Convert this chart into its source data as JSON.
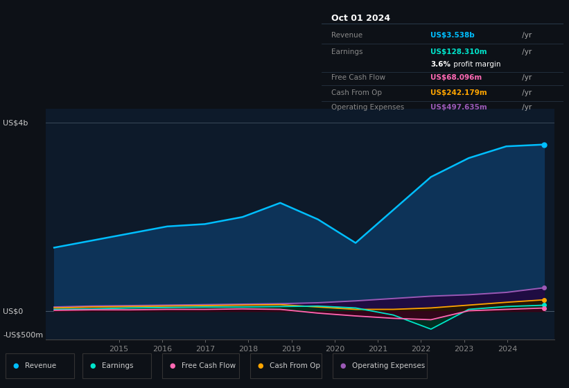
{
  "bg_color": "#0d1117",
  "plot_bg_color": "#0d1a2a",
  "title_box_bg": "#080c10",
  "title_box_text": "Oct 01 2024",
  "info_rows": [
    {
      "label": "Revenue",
      "value": "US$3.538b",
      "suffix": " /yr",
      "value_color": "#00bfff",
      "label_color": "#888888",
      "extra": null
    },
    {
      "label": "Earnings",
      "value": "US$128.310m",
      "suffix": " /yr",
      "value_color": "#00e5cc",
      "label_color": "#888888",
      "extra": "3.6% profit margin"
    },
    {
      "label": "Free Cash Flow",
      "value": "US$68.096m",
      "suffix": " /yr",
      "value_color": "#ff69b4",
      "label_color": "#888888",
      "extra": null
    },
    {
      "label": "Cash From Op",
      "value": "US$242.179m",
      "suffix": " /yr",
      "value_color": "#ffa500",
      "label_color": "#888888",
      "extra": null
    },
    {
      "label": "Operating Expenses",
      "value": "US$497.635m",
      "suffix": " /yr",
      "value_color": "#9b59b6",
      "label_color": "#888888",
      "extra": null
    }
  ],
  "ylabel_top": "US$4b",
  "ylabel_zero": "US$0",
  "ylabel_bottom": "-US$500m",
  "xtick_years": [
    2015,
    2016,
    2017,
    2018,
    2019,
    2020,
    2021,
    2022,
    2023,
    2024
  ],
  "revenue_color": "#00bfff",
  "revenue_fill": "#0d3a5c",
  "earnings_color": "#00e5cc",
  "fcf_color": "#ff69b4",
  "cashfromop_color": "#ffa500",
  "opex_color": "#9b59b6",
  "legend_items": [
    {
      "label": "Revenue",
      "color": "#00bfff"
    },
    {
      "label": "Earnings",
      "color": "#00e5cc"
    },
    {
      "label": "Free Cash Flow",
      "color": "#ff69b4"
    },
    {
      "label": "Cash From Op",
      "color": "#ffa500"
    },
    {
      "label": "Operating Expenses",
      "color": "#9b59b6"
    }
  ],
  "x_start": 2013.5,
  "x_end": 2024.85,
  "revenue": [
    1.35,
    1.5,
    1.65,
    1.8,
    1.85,
    2.0,
    2.3,
    1.95,
    1.45,
    2.15,
    2.85,
    3.25,
    3.5,
    3.538
  ],
  "earnings": [
    0.04,
    0.05,
    0.07,
    0.08,
    0.09,
    0.09,
    0.1,
    0.11,
    0.07,
    -0.08,
    -0.38,
    0.04,
    0.1,
    0.128
  ],
  "fcf": [
    0.02,
    0.03,
    0.03,
    0.04,
    0.04,
    0.05,
    0.04,
    -0.04,
    -0.1,
    -0.15,
    -0.18,
    0.01,
    0.04,
    0.068
  ],
  "cashfromop": [
    0.07,
    0.09,
    0.1,
    0.11,
    0.12,
    0.13,
    0.14,
    0.09,
    0.04,
    0.04,
    0.07,
    0.13,
    0.19,
    0.242
  ],
  "opex": [
    0.09,
    0.11,
    0.12,
    0.13,
    0.14,
    0.15,
    0.16,
    0.18,
    0.22,
    0.27,
    0.32,
    0.35,
    0.4,
    0.498
  ],
  "ylim": [
    -0.6,
    4.3
  ],
  "xlim": [
    2013.3,
    2025.1
  ]
}
